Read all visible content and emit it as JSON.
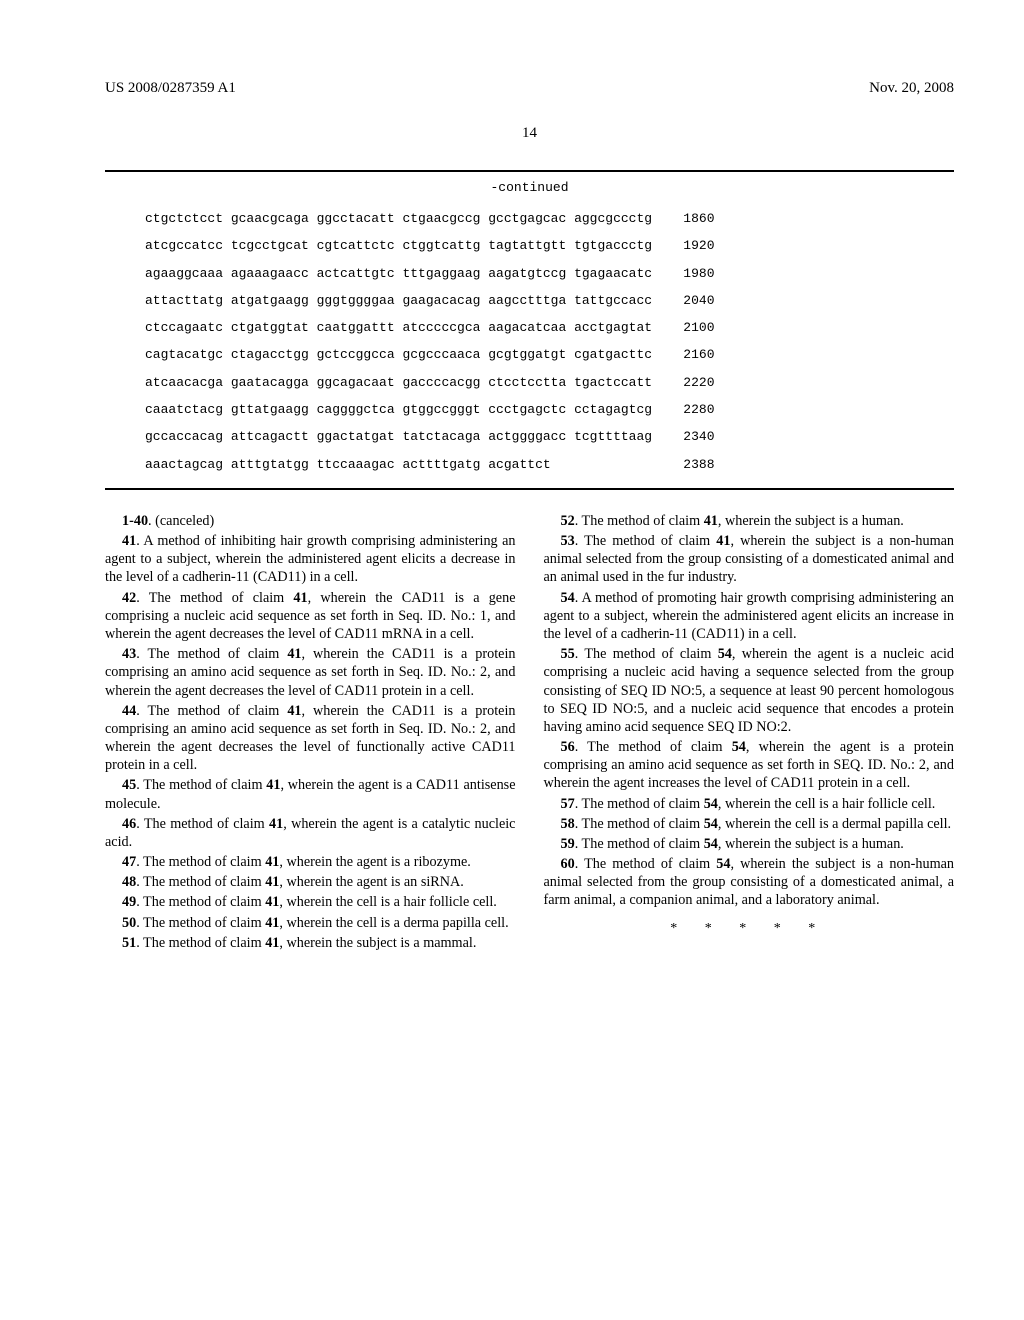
{
  "header": {
    "pub_number": "US 2008/0287359 A1",
    "pub_date": "Nov. 20, 2008"
  },
  "page_number": "14",
  "sequence": {
    "continued_label": "-continued",
    "rows": [
      {
        "seq": "ctgctctcct gcaacgcaga ggcctacatt ctgaacgccg gcctgagcac aggcgccctg",
        "pos": "1860"
      },
      {
        "seq": "atcgccatcc tcgcctgcat cgtcattctc ctggtcattg tagtattgtt tgtgaccctg",
        "pos": "1920"
      },
      {
        "seq": "agaaggcaaa agaaagaacc actcattgtc tttgaggaag aagatgtccg tgagaacatc",
        "pos": "1980"
      },
      {
        "seq": "attacttatg atgatgaagg gggtggggaa gaagacacag aagcctttga tattgccacc",
        "pos": "2040"
      },
      {
        "seq": "ctccagaatc ctgatggtat caatggattt atcccccgca aagacatcaa acctgagtat",
        "pos": "2100"
      },
      {
        "seq": "cagtacatgc ctagacctgg gctccggcca gcgcccaaca gcgtggatgt cgatgacttc",
        "pos": "2160"
      },
      {
        "seq": "atcaacacga gaatacagga ggcagacaat gaccccacgg ctcctcctta tgactccatt",
        "pos": "2220"
      },
      {
        "seq": "caaatctacg gttatgaagg caggggctca gtggccgggt ccctgagctc cctagagtcg",
        "pos": "2280"
      },
      {
        "seq": "gccaccacag attcagactt ggactatgat tatctacaga actggggacc tcgttttaag",
        "pos": "2340"
      },
      {
        "seq": "aaactagcag atttgtatgg ttccaaagac acttttgatg acgattct",
        "pos": "2388"
      }
    ]
  },
  "claims": [
    {
      "label": "1-40",
      "text": ". (canceled)"
    },
    {
      "label": "41",
      "text": ". A method of inhibiting hair growth comprising administering an agent to a subject, wherein the administered agent elicits a decrease in the level of a cadherin-11 (CAD11) in a cell."
    },
    {
      "label": "42",
      "text": ". The method of claim 41, wherein the CAD11 is a gene comprising a nucleic acid sequence as set forth in Seq. ID. No.: 1, and wherein the agent decreases the level of CAD11 mRNA in a cell."
    },
    {
      "label": "43",
      "text": ". The method of claim 41, wherein the CAD11 is a protein comprising an amino acid sequence as set forth in Seq. ID. No.: 2, and wherein the agent decreases the level of CAD11 protein in a cell."
    },
    {
      "label": "44",
      "text": ". The method of claim 41, wherein the CAD11 is a protein comprising an amino acid sequence as set forth in Seq. ID. No.: 2, and wherein the agent decreases the level of functionally active CAD11 protein in a cell."
    },
    {
      "label": "45",
      "text": ". The method of claim 41, wherein the agent is a CAD11 antisense molecule."
    },
    {
      "label": "46",
      "text": ". The method of claim 41, wherein the agent is a catalytic nucleic acid."
    },
    {
      "label": "47",
      "text": ". The method of claim 41, wherein the agent is a ribozyme."
    },
    {
      "label": "48",
      "text": ". The method of claim 41, wherein the agent is an siRNA."
    },
    {
      "label": "49",
      "text": ". The method of claim 41, wherein the cell is a hair follicle cell."
    },
    {
      "label": "50",
      "text": ". The method of claim 41, wherein the cell is a derma papilla cell."
    },
    {
      "label": "51",
      "text": ". The method of claim 41, wherein the subject is a mammal."
    },
    {
      "label": "52",
      "text": ". The method of claim 41, wherein the subject is a human."
    },
    {
      "label": "53",
      "text": ". The method of claim 41, wherein the subject is a non-human animal selected from the group consisting of a domesticated animal and an animal used in the fur industry."
    },
    {
      "label": "54",
      "text": ". A method of promoting hair growth comprising administering an agent to a subject, wherein the administered agent elicits an increase in the level of a cadherin-11 (CAD11) in a cell."
    },
    {
      "label": "55",
      "text": ". The method of claim 54, wherein the agent is a nucleic acid comprising a nucleic acid having a sequence selected from the group consisting of SEQ ID NO:5, a sequence at least 90 percent homologous to SEQ ID NO:5, and a nucleic acid sequence that encodes a protein having amino acid sequence SEQ ID NO:2."
    },
    {
      "label": "56",
      "text": ". The method of claim 54, wherein the agent is a protein comprising an amino acid sequence as set forth in SEQ. ID. No.: 2, and wherein the agent increases the level of CAD11 protein in a cell."
    },
    {
      "label": "57",
      "text": ". The method of claim 54, wherein the cell is a hair follicle cell."
    },
    {
      "label": "58",
      "text": ". The method of claim 54, wherein the cell is a dermal papilla cell."
    },
    {
      "label": "59",
      "text": ". The method of claim 54, wherein the subject is a human."
    },
    {
      "label": "60",
      "text": ". The method of claim 54, wherein the subject is a non-human animal selected from the group consisting of a domesticated animal, a farm animal, a companion animal, and a laboratory animal."
    }
  ],
  "stars": "* * * * *",
  "bold_refs": [
    "41",
    "54"
  ]
}
